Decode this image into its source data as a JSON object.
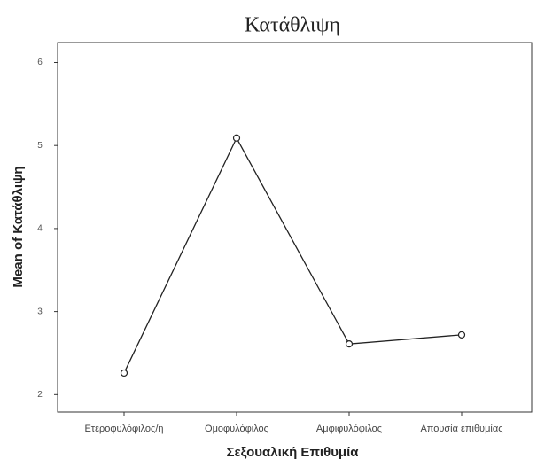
{
  "chart_data": {
    "type": "line",
    "title": "Κατάθλιψη",
    "x_label": "Σεξουαλική Επιθυμία",
    "y_label": "Mean of Κατάθλιψη",
    "categories": [
      "Ετεροφυλόφιλος/η",
      "Ομοφυλόφιλος",
      "Αμφιφυλόφιλος",
      "Απουσία επιθυμίας"
    ],
    "series": [
      {
        "name": "Κατάθλιψη",
        "color": "#222222",
        "values": [
          2.26,
          5.09,
          2.61,
          2.72
        ]
      }
    ],
    "ylim": [
      1.79,
      6.24
    ],
    "yticks": [
      2,
      3,
      4,
      5,
      6
    ]
  }
}
